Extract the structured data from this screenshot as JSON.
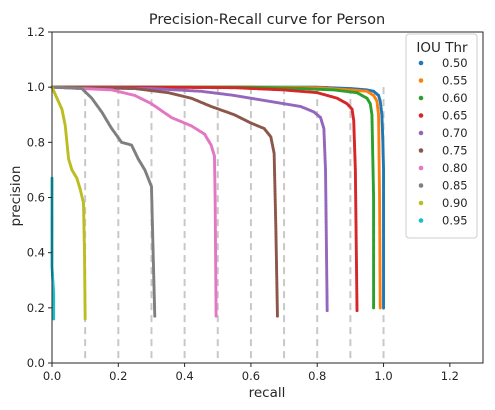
{
  "chart_data": {
    "type": "scatter",
    "title": "Precision-Recall curve for Person",
    "xlabel": "recall",
    "ylabel": "precision",
    "xlim": [
      0.0,
      1.3
    ],
    "ylim": [
      0.0,
      1.2
    ],
    "xticks": [
      "0.0",
      "0.2",
      "0.4",
      "0.6",
      "0.8",
      "1.0",
      "1.2"
    ],
    "yticks": [
      "0.0",
      "0.2",
      "0.4",
      "0.6",
      "0.8",
      "1.0",
      "1.2"
    ],
    "grid": false,
    "reference_lines_x": [
      0.1,
      0.2,
      0.3,
      0.4,
      0.5,
      0.6,
      0.7,
      0.8,
      0.9,
      1.0
    ],
    "legend": {
      "title": "IOU Thr",
      "position": "right"
    },
    "series": [
      {
        "name": "0.50",
        "color": "#1f77b4",
        "points": [
          [
            0.0,
            1.0
          ],
          [
            0.3,
            1.0
          ],
          [
            0.6,
            1.0
          ],
          [
            0.8,
            1.0
          ],
          [
            0.9,
            0.995
          ],
          [
            0.95,
            0.99
          ],
          [
            0.97,
            0.985
          ],
          [
            0.985,
            0.97
          ],
          [
            0.99,
            0.95
          ],
          [
            0.995,
            0.9
          ],
          [
            0.998,
            0.8
          ],
          [
            1.0,
            0.7
          ],
          [
            1.0,
            0.2
          ]
        ]
      },
      {
        "name": "0.55",
        "color": "#ff7f0e",
        "points": [
          [
            0.0,
            1.0
          ],
          [
            0.3,
            1.0
          ],
          [
            0.6,
            1.0
          ],
          [
            0.8,
            0.998
          ],
          [
            0.9,
            0.99
          ],
          [
            0.95,
            0.985
          ],
          [
            0.97,
            0.97
          ],
          [
            0.98,
            0.95
          ],
          [
            0.985,
            0.9
          ],
          [
            0.988,
            0.6
          ],
          [
            0.99,
            0.2
          ]
        ]
      },
      {
        "name": "0.60",
        "color": "#2ca02c",
        "points": [
          [
            0.0,
            1.0
          ],
          [
            0.3,
            1.0
          ],
          [
            0.6,
            1.0
          ],
          [
            0.75,
            0.995
          ],
          [
            0.85,
            0.99
          ],
          [
            0.92,
            0.98
          ],
          [
            0.95,
            0.96
          ],
          [
            0.96,
            0.94
          ],
          [
            0.965,
            0.9
          ],
          [
            0.97,
            0.6
          ],
          [
            0.97,
            0.2
          ]
        ]
      },
      {
        "name": "0.65",
        "color": "#d62728",
        "points": [
          [
            0.0,
            1.0
          ],
          [
            0.3,
            1.0
          ],
          [
            0.55,
            0.998
          ],
          [
            0.7,
            0.99
          ],
          [
            0.8,
            0.98
          ],
          [
            0.86,
            0.96
          ],
          [
            0.89,
            0.94
          ],
          [
            0.905,
            0.92
          ],
          [
            0.91,
            0.88
          ],
          [
            0.915,
            0.7
          ],
          [
            0.92,
            0.19
          ]
        ]
      },
      {
        "name": "0.70",
        "color": "#9467bd",
        "points": [
          [
            0.0,
            1.0
          ],
          [
            0.3,
            0.995
          ],
          [
            0.45,
            0.985
          ],
          [
            0.55,
            0.97
          ],
          [
            0.65,
            0.95
          ],
          [
            0.75,
            0.93
          ],
          [
            0.79,
            0.91
          ],
          [
            0.81,
            0.89
          ],
          [
            0.82,
            0.85
          ],
          [
            0.825,
            0.7
          ],
          [
            0.83,
            0.19
          ]
        ]
      },
      {
        "name": "0.75",
        "color": "#8c564b",
        "points": [
          [
            0.0,
            1.0
          ],
          [
            0.25,
            0.995
          ],
          [
            0.35,
            0.98
          ],
          [
            0.42,
            0.96
          ],
          [
            0.48,
            0.93
          ],
          [
            0.55,
            0.9
          ],
          [
            0.6,
            0.87
          ],
          [
            0.64,
            0.85
          ],
          [
            0.66,
            0.82
          ],
          [
            0.67,
            0.76
          ],
          [
            0.675,
            0.5
          ],
          [
            0.68,
            0.17
          ]
        ]
      },
      {
        "name": "0.80",
        "color": "#e377c2",
        "points": [
          [
            0.0,
            1.0
          ],
          [
            0.18,
            0.99
          ],
          [
            0.25,
            0.97
          ],
          [
            0.3,
            0.94
          ],
          [
            0.36,
            0.89
          ],
          [
            0.42,
            0.86
          ],
          [
            0.46,
            0.83
          ],
          [
            0.48,
            0.79
          ],
          [
            0.49,
            0.75
          ],
          [
            0.492,
            0.6
          ],
          [
            0.495,
            0.17
          ]
        ]
      },
      {
        "name": "0.85",
        "color": "#7f7f7f",
        "points": [
          [
            0.0,
            1.0
          ],
          [
            0.09,
            0.995
          ],
          [
            0.12,
            0.96
          ],
          [
            0.15,
            0.91
          ],
          [
            0.18,
            0.85
          ],
          [
            0.21,
            0.8
          ],
          [
            0.24,
            0.79
          ],
          [
            0.26,
            0.74
          ],
          [
            0.28,
            0.7
          ],
          [
            0.3,
            0.64
          ],
          [
            0.305,
            0.4
          ],
          [
            0.31,
            0.17
          ]
        ]
      },
      {
        "name": "0.90",
        "color": "#bcbd22",
        "points": [
          [
            0.0,
            1.0
          ],
          [
            0.03,
            0.92
          ],
          [
            0.04,
            0.86
          ],
          [
            0.05,
            0.74
          ],
          [
            0.06,
            0.7
          ],
          [
            0.075,
            0.67
          ],
          [
            0.085,
            0.63
          ],
          [
            0.095,
            0.58
          ],
          [
            0.098,
            0.4
          ],
          [
            0.1,
            0.16
          ]
        ]
      },
      {
        "name": "0.95",
        "color": "#17becf",
        "points": [
          [
            0.0,
            0.67
          ],
          [
            0.0,
            0.6
          ],
          [
            0.0,
            0.52
          ],
          [
            0.0,
            0.45
          ],
          [
            0.0,
            0.35
          ],
          [
            0.005,
            0.25
          ],
          [
            0.005,
            0.16
          ]
        ]
      }
    ]
  }
}
